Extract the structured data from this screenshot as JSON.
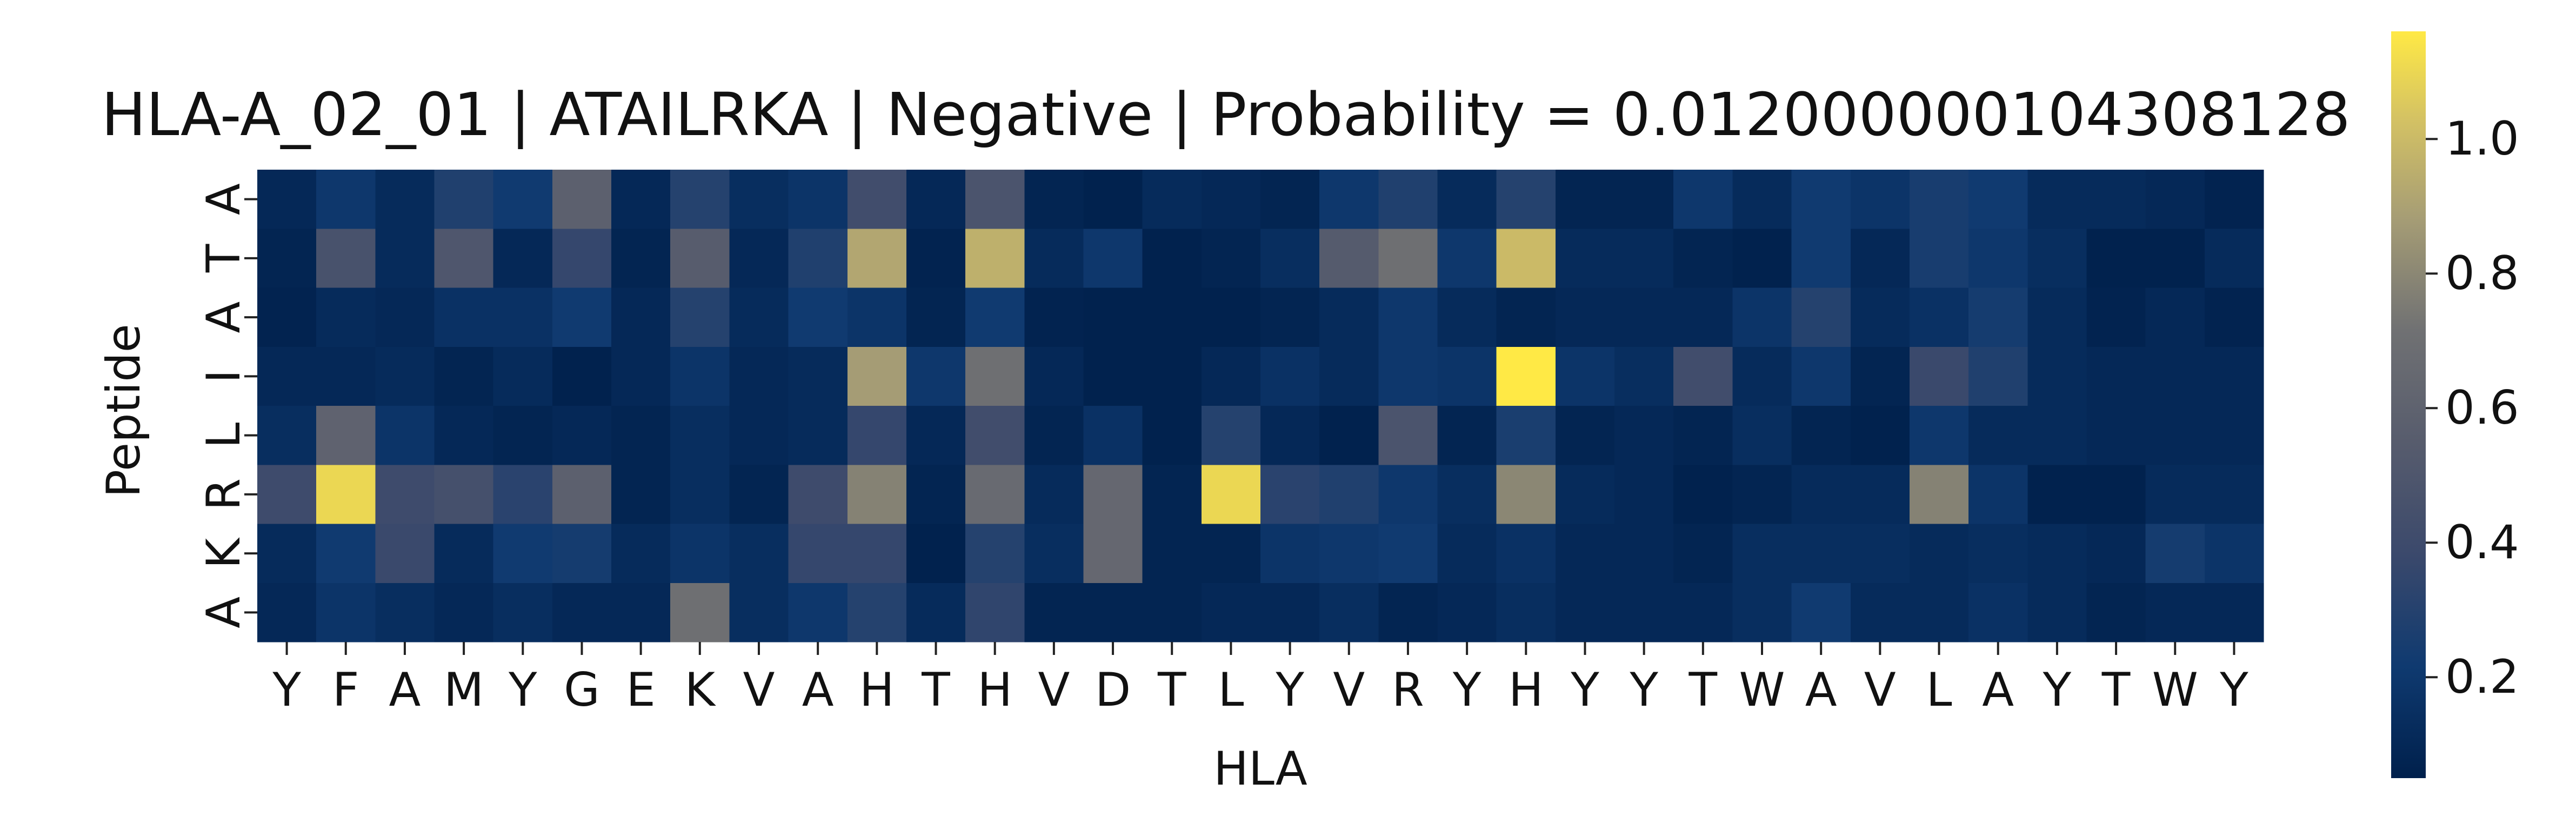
{
  "chart_data": {
    "type": "heatmap",
    "title": "HLA-A_02_01 | ATAILRKA | Negative | Probability = 0.012000000104308128",
    "xlabel": "HLA",
    "ylabel": "Peptide",
    "x_labels": [
      "Y",
      "F",
      "A",
      "M",
      "Y",
      "G",
      "E",
      "K",
      "V",
      "A",
      "H",
      "T",
      "H",
      "V",
      "D",
      "T",
      "L",
      "Y",
      "V",
      "R",
      "Y",
      "H",
      "Y",
      "Y",
      "T",
      "W",
      "A",
      "V",
      "L",
      "A",
      "Y",
      "T",
      "W",
      "Y"
    ],
    "y_labels": [
      "A",
      "T",
      "A",
      "I",
      "L",
      "R",
      "K",
      "A"
    ],
    "values": [
      [
        0.1,
        0.2,
        0.12,
        0.28,
        0.22,
        0.58,
        0.1,
        0.3,
        0.14,
        0.18,
        0.42,
        0.1,
        0.48,
        0.08,
        0.06,
        0.12,
        0.1,
        0.08,
        0.2,
        0.28,
        0.12,
        0.3,
        0.08,
        0.08,
        0.2,
        0.12,
        0.22,
        0.18,
        0.25,
        0.22,
        0.12,
        0.12,
        0.1,
        0.07
      ],
      [
        0.08,
        0.46,
        0.12,
        0.5,
        0.1,
        0.36,
        0.08,
        0.55,
        0.1,
        0.28,
        0.92,
        0.07,
        0.96,
        0.12,
        0.2,
        0.06,
        0.08,
        0.14,
        0.54,
        0.7,
        0.2,
        1.0,
        0.12,
        0.12,
        0.08,
        0.06,
        0.22,
        0.1,
        0.25,
        0.2,
        0.14,
        0.06,
        0.06,
        0.12
      ],
      [
        0.07,
        0.12,
        0.1,
        0.16,
        0.16,
        0.22,
        0.1,
        0.3,
        0.12,
        0.22,
        0.18,
        0.08,
        0.22,
        0.07,
        0.06,
        0.06,
        0.06,
        0.08,
        0.12,
        0.2,
        0.12,
        0.08,
        0.1,
        0.1,
        0.1,
        0.18,
        0.3,
        0.12,
        0.16,
        0.24,
        0.12,
        0.07,
        0.1,
        0.07
      ],
      [
        0.1,
        0.1,
        0.12,
        0.08,
        0.12,
        0.06,
        0.1,
        0.18,
        0.1,
        0.12,
        0.88,
        0.2,
        0.7,
        0.1,
        0.06,
        0.06,
        0.1,
        0.16,
        0.12,
        0.2,
        0.18,
        1.16,
        0.18,
        0.14,
        0.42,
        0.12,
        0.2,
        0.08,
        0.38,
        0.28,
        0.12,
        0.1,
        0.1,
        0.1
      ],
      [
        0.14,
        0.6,
        0.18,
        0.1,
        0.08,
        0.1,
        0.08,
        0.14,
        0.1,
        0.12,
        0.36,
        0.1,
        0.42,
        0.08,
        0.16,
        0.06,
        0.3,
        0.1,
        0.06,
        0.48,
        0.08,
        0.26,
        0.08,
        0.1,
        0.08,
        0.14,
        0.08,
        0.06,
        0.2,
        0.12,
        0.12,
        0.1,
        0.1,
        0.1
      ],
      [
        0.4,
        1.1,
        0.4,
        0.44,
        0.32,
        0.58,
        0.08,
        0.14,
        0.08,
        0.4,
        0.78,
        0.08,
        0.66,
        0.12,
        0.64,
        0.08,
        1.1,
        0.32,
        0.28,
        0.2,
        0.14,
        0.8,
        0.12,
        0.1,
        0.06,
        0.08,
        0.12,
        0.12,
        0.78,
        0.18,
        0.06,
        0.06,
        0.12,
        0.12
      ],
      [
        0.12,
        0.22,
        0.38,
        0.12,
        0.22,
        0.24,
        0.12,
        0.18,
        0.14,
        0.36,
        0.36,
        0.06,
        0.3,
        0.14,
        0.64,
        0.08,
        0.08,
        0.18,
        0.2,
        0.22,
        0.12,
        0.16,
        0.1,
        0.1,
        0.08,
        0.14,
        0.14,
        0.14,
        0.12,
        0.14,
        0.12,
        0.1,
        0.24,
        0.18
      ],
      [
        0.1,
        0.18,
        0.14,
        0.1,
        0.14,
        0.1,
        0.1,
        0.7,
        0.14,
        0.2,
        0.3,
        0.12,
        0.34,
        0.08,
        0.08,
        0.08,
        0.1,
        0.1,
        0.14,
        0.08,
        0.1,
        0.14,
        0.1,
        0.1,
        0.1,
        0.14,
        0.22,
        0.12,
        0.12,
        0.16,
        0.12,
        0.08,
        0.1,
        0.1
      ]
    ],
    "colormap": "cividis",
    "vmin": 0.05,
    "vmax": 1.16,
    "colorbar_ticks": [
      0.2,
      0.4,
      0.6,
      0.8,
      1.0
    ],
    "colorbar_tick_labels": [
      "0.2",
      "0.4",
      "0.6",
      "0.8",
      "1.0"
    ],
    "grid": false
  }
}
